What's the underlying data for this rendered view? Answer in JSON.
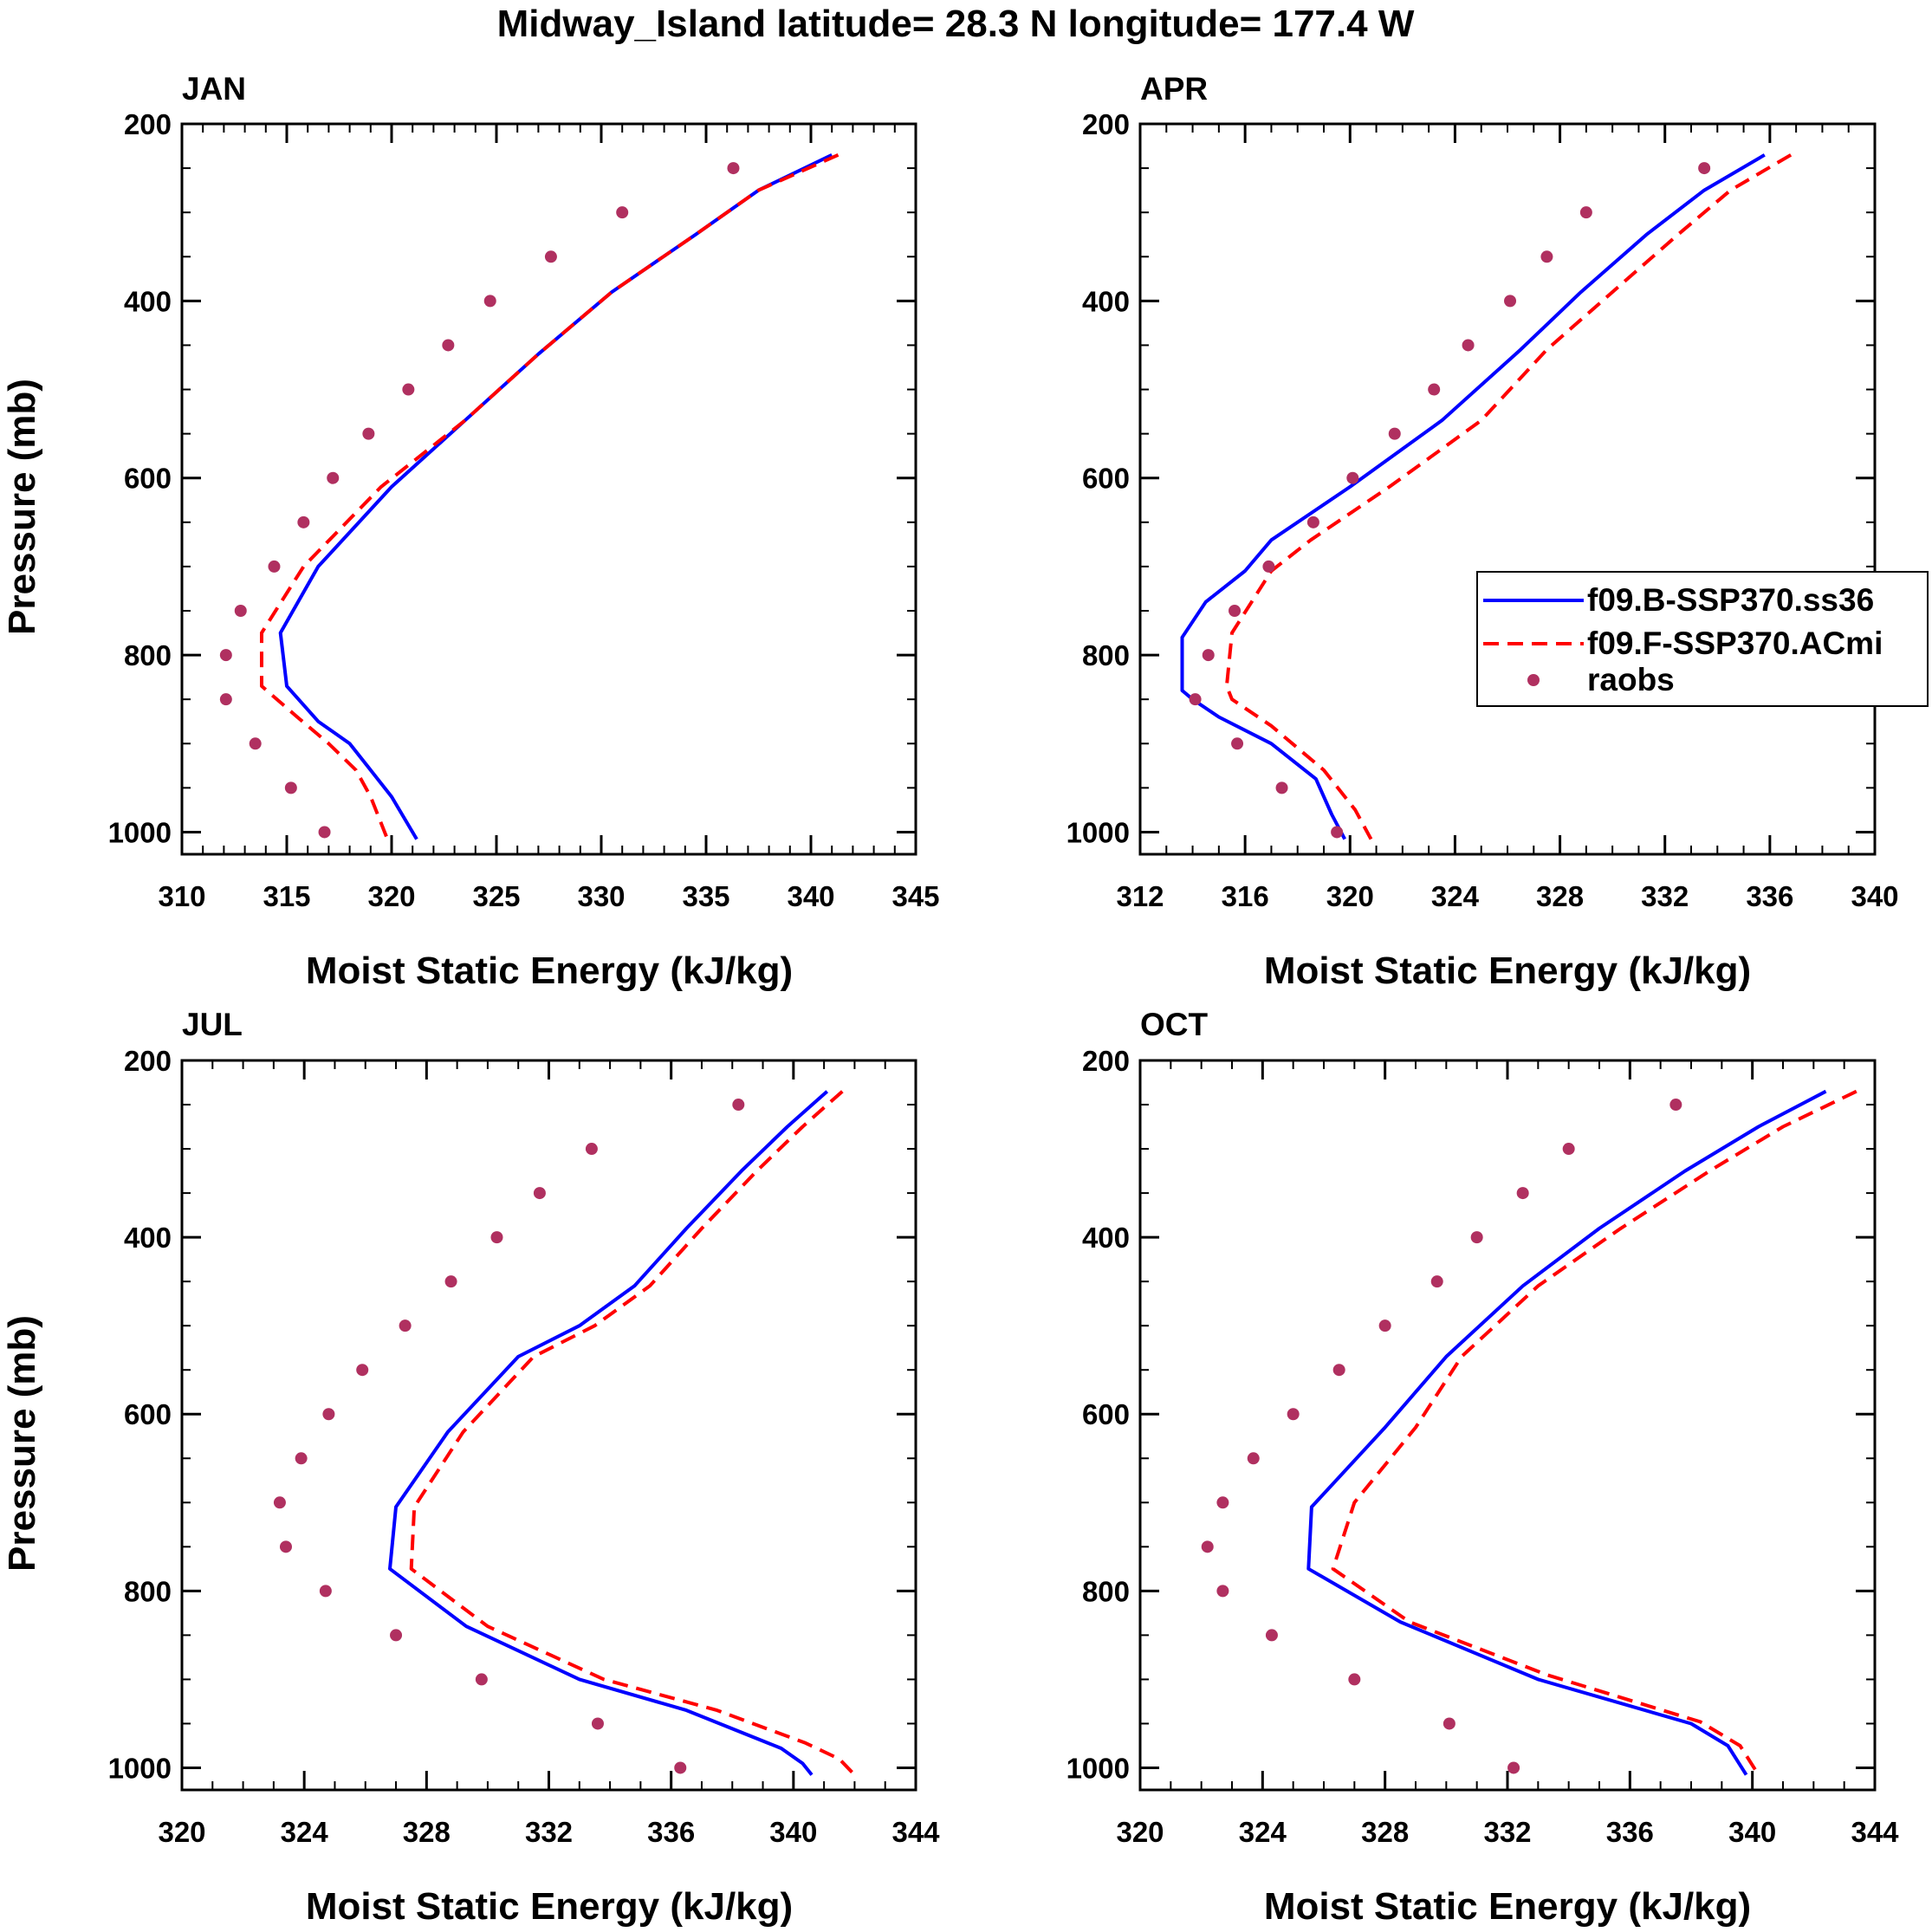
{
  "figure_title": "Midway_Island  latitude= 28.3 N longitude= 177.4 W",
  "colors": {
    "model_b": "#0000ff",
    "model_f": "#ff0000",
    "obs": "#b03060"
  },
  "legend": [
    "f09.B-SSP370.ss36",
    "f09.F-SSP370.ACmi",
    "raobs"
  ],
  "chart_data": [
    {
      "type": "line",
      "title": "JAN",
      "xlabel": "Moist Static Energy (kJ/kg)",
      "ylabel": "Pressure (mb)",
      "xlim": [
        310,
        345
      ],
      "ylim": [
        1025,
        200
      ],
      "xticks": [
        310,
        315,
        320,
        325,
        330,
        335,
        340,
        345
      ],
      "xminor": 1,
      "yticks": [
        200,
        400,
        600,
        800,
        1000
      ],
      "series": [
        {
          "name": "f09.B-SSP370.ss36",
          "style": "solid",
          "x": [
            341,
            337.5,
            334.5,
            330.5,
            327,
            323.5,
            320,
            316.5,
            314.7,
            315,
            316.5,
            318,
            319,
            320,
            321.2
          ],
          "y": [
            235,
            275,
            325,
            390,
            460,
            535,
            610,
            700,
            775,
            835,
            875,
            900,
            930,
            960,
            1008
          ]
        },
        {
          "name": "f09.F-SSP370.ACmi",
          "style": "dashed",
          "x": [
            341.3,
            337.5,
            334.5,
            330.5,
            327,
            323.5,
            319.5,
            315.8,
            313.8,
            313.8,
            315.5,
            317,
            318.3,
            319,
            319.8
          ],
          "y": [
            235,
            275,
            325,
            390,
            460,
            535,
            610,
            700,
            775,
            835,
            870,
            900,
            930,
            960,
            1008
          ]
        },
        {
          "name": "raobs",
          "style": "dots",
          "x": [
            336.3,
            331,
            327.6,
            324.7,
            322.7,
            320.8,
            318.9,
            317.2,
            315.8,
            314.4,
            312.8,
            312.1,
            312.1,
            313.5,
            315.2,
            316.8
          ],
          "y": [
            250,
            300,
            350,
            400,
            450,
            500,
            550,
            600,
            650,
            700,
            750,
            800,
            850,
            900,
            950,
            1000
          ]
        }
      ]
    },
    {
      "type": "line",
      "title": "APR",
      "xlabel": "Moist Static Energy (kJ/kg)",
      "ylabel": "",
      "xlim": [
        312,
        340
      ],
      "ylim": [
        1025,
        200
      ],
      "xticks": [
        312,
        316,
        320,
        324,
        328,
        332,
        336,
        340
      ],
      "xminor": 1,
      "yticks": [
        200,
        400,
        600,
        800,
        1000
      ],
      "series": [
        {
          "name": "f09.B-SSP370.ss36",
          "style": "solid",
          "x": [
            335.8,
            333.5,
            331.3,
            328.8,
            326.5,
            323.5,
            320,
            317,
            316,
            314.5,
            313.6,
            313.6,
            314,
            315,
            317,
            318.7,
            319.3,
            319.8
          ],
          "y": [
            235,
            275,
            325,
            390,
            455,
            535,
            610,
            670,
            705,
            740,
            780,
            840,
            850,
            870,
            900,
            940,
            980,
            1008
          ]
        },
        {
          "name": "f09.F-SSP370.ACmi",
          "style": "dashed",
          "x": [
            336.8,
            334.5,
            332.5,
            330,
            327.5,
            325,
            321.5,
            318.5,
            317,
            315.5,
            315.3,
            315.5,
            317,
            319,
            320.2,
            320.8
          ],
          "y": [
            235,
            275,
            325,
            390,
            455,
            535,
            610,
            670,
            705,
            775,
            835,
            850,
            880,
            930,
            975,
            1008
          ]
        },
        {
          "name": "raobs",
          "style": "dots",
          "x": [
            333.5,
            329,
            327.5,
            326.1,
            324.5,
            323.2,
            321.7,
            320.1,
            318.6,
            316.9,
            315.6,
            314.6,
            314.1,
            315.7,
            317.4,
            319.5
          ],
          "y": [
            250,
            300,
            350,
            400,
            450,
            500,
            550,
            600,
            650,
            700,
            750,
            800,
            850,
            900,
            950,
            1000
          ]
        }
      ]
    },
    {
      "type": "line",
      "title": "JUL",
      "xlabel": "Moist Static Energy (kJ/kg)",
      "ylabel": "Pressure (mb)",
      "xlim": [
        320,
        344
      ],
      "ylim": [
        1025,
        200
      ],
      "xticks": [
        320,
        324,
        328,
        332,
        336,
        340,
        344
      ],
      "xminor": 1,
      "yticks": [
        200,
        400,
        600,
        800,
        1000
      ],
      "series": [
        {
          "name": "f09.B-SSP370.ss36",
          "style": "solid",
          "x": [
            341.1,
            339.8,
            338.3,
            336.5,
            334.8,
            333,
            331,
            328.7,
            327,
            326.8,
            329.3,
            333,
            336.5,
            339.6,
            340.3,
            340.6
          ],
          "y": [
            235,
            275,
            325,
            390,
            455,
            500,
            535,
            620,
            705,
            775,
            840,
            900,
            935,
            978,
            995,
            1008
          ]
        },
        {
          "name": "f09.F-SSP370.ACmi",
          "style": "dashed",
          "x": [
            341.6,
            340.3,
            338.8,
            337,
            335.3,
            333.5,
            331.5,
            329.2,
            327.6,
            327.5,
            330,
            333.8,
            337.5,
            340.4,
            341.5,
            342
          ],
          "y": [
            235,
            275,
            325,
            390,
            455,
            500,
            535,
            620,
            705,
            775,
            840,
            900,
            935,
            972,
            990,
            1008
          ]
        },
        {
          "name": "raobs",
          "style": "dots",
          "x": [
            338.2,
            333.4,
            331.7,
            330.3,
            328.8,
            327.3,
            325.9,
            324.8,
            323.9,
            323.2,
            323.4,
            324.7,
            327,
            329.8,
            333.6,
            336.3
          ],
          "y": [
            250,
            300,
            350,
            400,
            450,
            500,
            550,
            600,
            650,
            700,
            750,
            800,
            850,
            900,
            950,
            1000
          ]
        }
      ]
    },
    {
      "type": "line",
      "title": "OCT",
      "xlabel": "Moist Static Energy (kJ/kg)",
      "ylabel": "",
      "xlim": [
        320,
        344
      ],
      "ylim": [
        1025,
        200
      ],
      "xticks": [
        320,
        324,
        328,
        332,
        336,
        340,
        344
      ],
      "xminor": 1,
      "yticks": [
        200,
        400,
        600,
        800,
        1000
      ],
      "series": [
        {
          "name": "f09.B-SSP370.ss36",
          "style": "solid",
          "x": [
            342.4,
            340.2,
            337.8,
            335,
            332.5,
            330,
            328,
            325.6,
            325.5,
            328.5,
            333,
            338,
            339.2,
            339.8
          ],
          "y": [
            235,
            275,
            325,
            390,
            455,
            535,
            615,
            705,
            775,
            835,
            900,
            950,
            975,
            1008
          ]
        },
        {
          "name": "f09.F-SSP370.ACmi",
          "style": "dashed",
          "x": [
            343.4,
            341,
            338.6,
            335.7,
            333,
            330.5,
            329,
            327,
            326.3,
            328.8,
            333.3,
            338.3,
            339.6,
            340.2
          ],
          "y": [
            235,
            275,
            325,
            390,
            455,
            535,
            615,
            700,
            775,
            835,
            895,
            948,
            975,
            1008
          ]
        },
        {
          "name": "raobs",
          "style": "dots",
          "x": [
            337.5,
            334,
            332.5,
            331,
            329.7,
            328,
            326.5,
            325,
            323.7,
            322.7,
            322.2,
            322.7,
            324.3,
            327,
            330.1,
            332.2
          ],
          "y": [
            250,
            300,
            350,
            400,
            450,
            500,
            550,
            600,
            650,
            700,
            750,
            800,
            850,
            900,
            950,
            1000
          ]
        }
      ]
    }
  ]
}
